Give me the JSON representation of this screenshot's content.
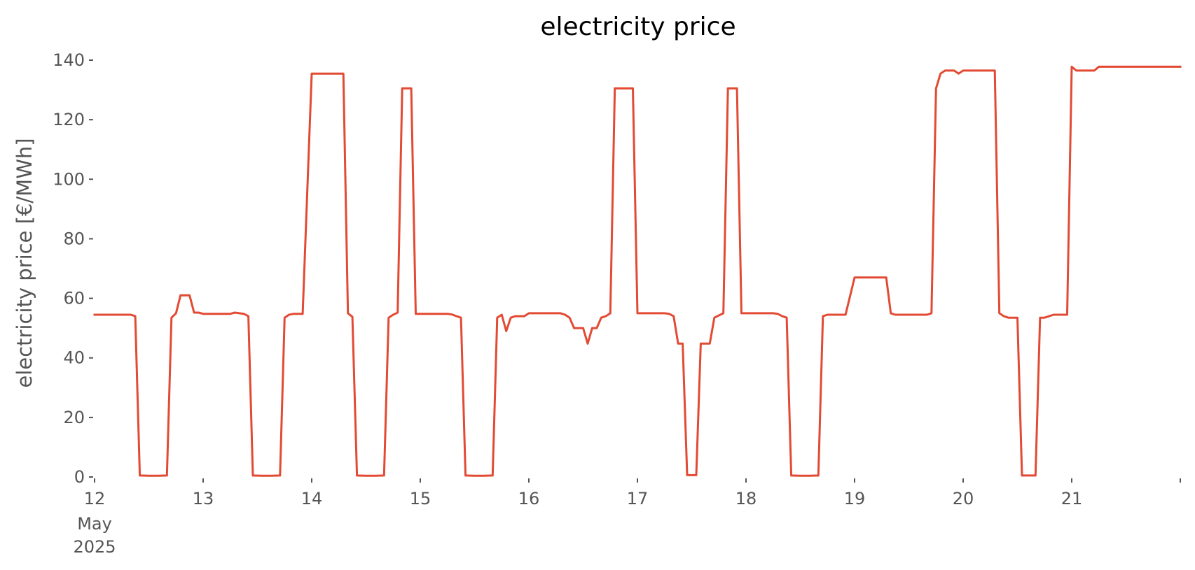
{
  "chart_data": {
    "type": "line",
    "title": "electricity price",
    "xlabel": "",
    "ylabel": "electricity price [€/MWh]",
    "ylim": [
      0,
      140
    ],
    "xlim": [
      "2025-05-12T00:00",
      "2025-05-22T00:00"
    ],
    "grid": false,
    "legend": "none",
    "color": "#E24A33",
    "y_ticks": [
      0,
      20,
      40,
      60,
      80,
      100,
      120,
      140
    ],
    "x_ticks": [
      {
        "date": "2025-05-12",
        "label": "12",
        "sub": [
          "May",
          "2025"
        ]
      },
      {
        "date": "2025-05-13",
        "label": "13"
      },
      {
        "date": "2025-05-14",
        "label": "14"
      },
      {
        "date": "2025-05-15",
        "label": "15"
      },
      {
        "date": "2025-05-16",
        "label": "16"
      },
      {
        "date": "2025-05-17",
        "label": "17"
      },
      {
        "date": "2025-05-18",
        "label": "18"
      },
      {
        "date": "2025-05-19",
        "label": "19"
      },
      {
        "date": "2025-05-20",
        "label": "20"
      },
      {
        "date": "2025-05-21",
        "label": "21"
      },
      {
        "date": "2025-05-22",
        "label": ""
      }
    ],
    "series": [
      {
        "points": [
          [
            "2025-05-12T00:00",
            54.5
          ],
          [
            "2025-05-12T08:00",
            54.5
          ],
          [
            "2025-05-12T09:00",
            54
          ],
          [
            "2025-05-12T10:00",
            0.5
          ],
          [
            "2025-05-12T12:00",
            0.4
          ],
          [
            "2025-05-12T14:00",
            0.4
          ],
          [
            "2025-05-12T16:00",
            0.5
          ],
          [
            "2025-05-12T17:00",
            53.5
          ],
          [
            "2025-05-12T18:00",
            55
          ],
          [
            "2025-05-12T19:00",
            61
          ],
          [
            "2025-05-12T21:00",
            61
          ],
          [
            "2025-05-12T22:00",
            55.2
          ],
          [
            "2025-05-12T23:00",
            55.2
          ],
          [
            "2025-05-13T00:00",
            54.8
          ],
          [
            "2025-05-13T06:00",
            54.8
          ],
          [
            "2025-05-13T07:00",
            55.2
          ],
          [
            "2025-05-13T08:00",
            55
          ],
          [
            "2025-05-13T09:00",
            54.8
          ],
          [
            "2025-05-13T10:00",
            54
          ],
          [
            "2025-05-13T11:00",
            0.5
          ],
          [
            "2025-05-13T13:00",
            0.4
          ],
          [
            "2025-05-13T15:00",
            0.4
          ],
          [
            "2025-05-13T17:00",
            0.5
          ],
          [
            "2025-05-13T18:00",
            53.5
          ],
          [
            "2025-05-13T19:00",
            54.5
          ],
          [
            "2025-05-13T20:00",
            54.8
          ],
          [
            "2025-05-13T21:00",
            54.8
          ],
          [
            "2025-05-13T22:00",
            54.8
          ],
          [
            "2025-05-14T00:00",
            135.5
          ],
          [
            "2025-05-14T03:00",
            135.5
          ],
          [
            "2025-05-14T07:00",
            135.5
          ],
          [
            "2025-05-14T08:00",
            55
          ],
          [
            "2025-05-14T09:00",
            53.8
          ],
          [
            "2025-05-14T10:00",
            0.5
          ],
          [
            "2025-05-14T12:00",
            0.4
          ],
          [
            "2025-05-14T14:00",
            0.4
          ],
          [
            "2025-05-14T16:00",
            0.5
          ],
          [
            "2025-05-14T17:00",
            53.5
          ],
          [
            "2025-05-14T18:00",
            54.5
          ],
          [
            "2025-05-14T19:00",
            55.2
          ],
          [
            "2025-05-14T20:00",
            130.5
          ],
          [
            "2025-05-14T22:00",
            130.5
          ],
          [
            "2025-05-14T23:00",
            54.8
          ],
          [
            "2025-05-15T00:00",
            54.8
          ],
          [
            "2025-05-15T03:00",
            54.8
          ],
          [
            "2025-05-15T06:00",
            54.8
          ],
          [
            "2025-05-15T07:00",
            54.6
          ],
          [
            "2025-05-15T08:00",
            54
          ],
          [
            "2025-05-15T09:00",
            53.5
          ],
          [
            "2025-05-15T10:00",
            0.5
          ],
          [
            "2025-05-15T12:00",
            0.4
          ],
          [
            "2025-05-15T14:00",
            0.4
          ],
          [
            "2025-05-15T16:00",
            0.5
          ],
          [
            "2025-05-15T17:00",
            53.5
          ],
          [
            "2025-05-15T18:00",
            54.5
          ],
          [
            "2025-05-15T19:00",
            49
          ],
          [
            "2025-05-15T20:00",
            53.5
          ],
          [
            "2025-05-15T21:00",
            54
          ],
          [
            "2025-05-15T22:00",
            54
          ],
          [
            "2025-05-15T23:00",
            54
          ],
          [
            "2025-05-16T00:00",
            55
          ],
          [
            "2025-05-16T03:00",
            55
          ],
          [
            "2025-05-16T06:00",
            55
          ],
          [
            "2025-05-16T07:00",
            55
          ],
          [
            "2025-05-16T08:00",
            54.5
          ],
          [
            "2025-05-16T09:00",
            53.5
          ],
          [
            "2025-05-16T10:00",
            50
          ],
          [
            "2025-05-16T12:00",
            50
          ],
          [
            "2025-05-16T13:00",
            44.8
          ],
          [
            "2025-05-16T14:00",
            50
          ],
          [
            "2025-05-16T15:00",
            50
          ],
          [
            "2025-05-16T16:00",
            53.5
          ],
          [
            "2025-05-16T17:00",
            54
          ],
          [
            "2025-05-16T18:00",
            55
          ],
          [
            "2025-05-16T19:00",
            130.5
          ],
          [
            "2025-05-16T21:00",
            130.5
          ],
          [
            "2025-05-16T23:00",
            130.5
          ],
          [
            "2025-05-17T00:00",
            55
          ],
          [
            "2025-05-17T03:00",
            55
          ],
          [
            "2025-05-17T06:00",
            55
          ],
          [
            "2025-05-17T07:00",
            54.8
          ],
          [
            "2025-05-17T08:00",
            54
          ],
          [
            "2025-05-17T09:00",
            44.8
          ],
          [
            "2025-05-17T10:00",
            44.8
          ],
          [
            "2025-05-17T11:00",
            0.6
          ],
          [
            "2025-05-17T13:00",
            0.6
          ],
          [
            "2025-05-17T14:00",
            44.8
          ],
          [
            "2025-05-17T16:00",
            44.8
          ],
          [
            "2025-05-17T17:00",
            53.5
          ],
          [
            "2025-05-17T19:00",
            55
          ],
          [
            "2025-05-17T20:00",
            130.5
          ],
          [
            "2025-05-17T22:00",
            130.5
          ],
          [
            "2025-05-17T23:00",
            55
          ],
          [
            "2025-05-18T00:00",
            55
          ],
          [
            "2025-05-18T03:00",
            55
          ],
          [
            "2025-05-18T06:00",
            55
          ],
          [
            "2025-05-18T07:00",
            54.8
          ],
          [
            "2025-05-18T08:00",
            54
          ],
          [
            "2025-05-18T09:00",
            53.5
          ],
          [
            "2025-05-18T10:00",
            0.5
          ],
          [
            "2025-05-18T12:00",
            0.4
          ],
          [
            "2025-05-18T14:00",
            0.4
          ],
          [
            "2025-05-18T16:00",
            0.5
          ],
          [
            "2025-05-18T17:00",
            54
          ],
          [
            "2025-05-18T18:00",
            54.5
          ],
          [
            "2025-05-18T20:00",
            54.5
          ],
          [
            "2025-05-18T22:00",
            54.5
          ],
          [
            "2025-05-19T00:00",
            67
          ],
          [
            "2025-05-19T02:00",
            67
          ],
          [
            "2025-05-19T05:00",
            67
          ],
          [
            "2025-05-19T07:00",
            67
          ],
          [
            "2025-05-19T08:00",
            55
          ],
          [
            "2025-05-19T09:00",
            54.5
          ],
          [
            "2025-05-19T12:00",
            54.5
          ],
          [
            "2025-05-19T15:00",
            54.5
          ],
          [
            "2025-05-19T16:00",
            54.5
          ],
          [
            "2025-05-19T17:00",
            55
          ],
          [
            "2025-05-19T18:00",
            130.5
          ],
          [
            "2025-05-19T19:00",
            135.5
          ],
          [
            "2025-05-19T20:00",
            136.5
          ],
          [
            "2025-05-19T22:00",
            136.5
          ],
          [
            "2025-05-19T23:00",
            135.5
          ],
          [
            "2025-05-20T00:00",
            136.5
          ],
          [
            "2025-05-20T03:00",
            136.5
          ],
          [
            "2025-05-20T06:00",
            136.5
          ],
          [
            "2025-05-20T07:00",
            136.5
          ],
          [
            "2025-05-20T08:00",
            55
          ],
          [
            "2025-05-20T09:00",
            54
          ],
          [
            "2025-05-20T10:00",
            53.5
          ],
          [
            "2025-05-20T11:00",
            53.5
          ],
          [
            "2025-05-20T12:00",
            53.5
          ],
          [
            "2025-05-20T13:00",
            0.5
          ],
          [
            "2025-05-20T15:00",
            0.5
          ],
          [
            "2025-05-20T16:00",
            0.5
          ],
          [
            "2025-05-20T17:00",
            53.5
          ],
          [
            "2025-05-20T18:00",
            53.5
          ],
          [
            "2025-05-20T19:00",
            54
          ],
          [
            "2025-05-20T20:00",
            54.5
          ],
          [
            "2025-05-20T22:00",
            54.5
          ],
          [
            "2025-05-20T23:00",
            54.5
          ],
          [
            "2025-05-21T00:00",
            137.8
          ],
          [
            "2025-05-21T01:00",
            136.5
          ],
          [
            "2025-05-21T03:00",
            136.5
          ],
          [
            "2025-05-21T05:00",
            136.5
          ],
          [
            "2025-05-21T06:00",
            137.8
          ],
          [
            "2025-05-21T12:00",
            137.8
          ],
          [
            "2025-05-21T18:00",
            137.8
          ],
          [
            "2025-05-22T00:00",
            137.8
          ]
        ]
      }
    ]
  }
}
